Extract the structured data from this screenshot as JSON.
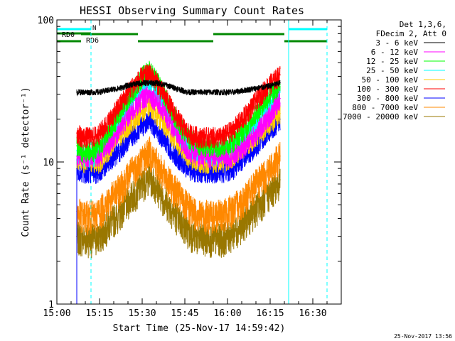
{
  "chart_data": {
    "type": "line",
    "title": "HESSI Observing Summary Count Rates",
    "xlabel": "Start Time (25-Nov-17 14:59:42)",
    "ylabel": "Count Rate (s⁻¹ detector⁻¹)",
    "footer": "25-Nov-2017 13:56",
    "x_range_minutes": [
      0,
      100
    ],
    "x_ticks": [
      {
        "t": 0,
        "label": "15:00"
      },
      {
        "t": 15,
        "label": "15:15"
      },
      {
        "t": 30,
        "label": "15:30"
      },
      {
        "t": 45,
        "label": "15:45"
      },
      {
        "t": 60,
        "label": "16:00"
      },
      {
        "t": 75,
        "label": "16:15"
      },
      {
        "t": 90,
        "label": "16:30"
      }
    ],
    "y_scale": "log",
    "y_range": [
      1,
      100
    ],
    "y_ticks": [
      {
        "v": 1,
        "label": "1"
      },
      {
        "v": 10,
        "label": "10"
      },
      {
        "v": 100,
        "label": "100"
      }
    ],
    "legend_header": [
      "Det 1,3,6,",
      "FDecim 2, Att 0"
    ],
    "series": [
      {
        "name": "3 - 6 keV",
        "color": "#000000",
        "values": [
          31,
          31,
          31,
          31,
          31,
          32,
          33,
          35,
          36,
          36,
          36,
          35,
          33,
          31,
          31,
          31,
          31,
          31,
          32,
          33,
          34,
          36
        ]
      },
      {
        "name": "6 - 12 keV",
        "color": "#ff00ff",
        "values": [
          11,
          11,
          11,
          11,
          11,
          13,
          17,
          22,
          28,
          30,
          27,
          22,
          16,
          12,
          11,
          11,
          11,
          11,
          13,
          16,
          20,
          28
        ]
      },
      {
        "name": "12 - 25 keV",
        "color": "#00ff00",
        "values": [
          13,
          12,
          12,
          12,
          13,
          16,
          22,
          30,
          40,
          45,
          38,
          29,
          20,
          15,
          13,
          13,
          13,
          14,
          17,
          22,
          28,
          35
        ]
      },
      {
        "name": "25 - 50 keV",
        "color": "#00ffff",
        "values": [
          12,
          11,
          11,
          11,
          12,
          14,
          19,
          26,
          34,
          38,
          33,
          25,
          17,
          13,
          12,
          11,
          12,
          13,
          15,
          19,
          24,
          31
        ]
      },
      {
        "name": "50 - 100 keV",
        "color": "#ffcc00",
        "values": [
          10,
          10,
          10,
          10,
          10,
          12,
          15,
          19,
          23,
          25,
          22,
          18,
          14,
          11,
          10,
          10,
          10,
          11,
          13,
          15,
          18,
          22
        ]
      },
      {
        "name": "100 - 300 keV",
        "color": "#ff0000",
        "values": [
          16,
          15,
          15,
          15,
          16,
          19,
          25,
          33,
          40,
          42,
          37,
          29,
          21,
          16,
          15,
          15,
          15,
          17,
          21,
          27,
          34,
          41
        ]
      },
      {
        "name": "300 - 800 keV",
        "color": "#0000ff",
        "values": [
          9,
          8.5,
          8.5,
          8.5,
          8.5,
          10,
          12,
          15,
          18,
          20,
          17,
          14,
          11,
          9,
          8.5,
          8.5,
          8.5,
          9,
          11,
          13,
          16,
          20
        ]
      },
      {
        "name": "800 - 7000 keV",
        "color": "#ff8800",
        "values": [
          4.5,
          4.2,
          4.2,
          4.2,
          4.5,
          5.3,
          6.5,
          8.5,
          10.5,
          12,
          10,
          8,
          6.2,
          4.8,
          4.3,
          4.2,
          4.3,
          4.7,
          5.6,
          7,
          8.5,
          11
        ]
      },
      {
        "name": "7000 - 20000 keV",
        "color": "#997700",
        "values": [
          3.0,
          2.9,
          2.9,
          2.9,
          3.0,
          3.6,
          4.4,
          5.6,
          7,
          8,
          6.8,
          5.4,
          4.2,
          3.3,
          2.9,
          2.9,
          2.9,
          3.2,
          3.8,
          4.7,
          5.8,
          7.5
        ]
      }
    ],
    "series_x": [
      7,
      9,
      11,
      13,
      15,
      18,
      22,
      26,
      30,
      32.5,
      35,
      38,
      42,
      46,
      50,
      54,
      58,
      62,
      66,
      70,
      74,
      78.5
    ],
    "night_periods": [
      {
        "label": "",
        "start": 0,
        "end": 12
      },
      {
        "label": "",
        "start": 81.5,
        "end": 95
      }
    ],
    "saa_bars": [
      {
        "label": "RD0",
        "start": 0,
        "end": 12
      },
      {
        "label": "RD6",
        "start": 0,
        "end": 8.5
      },
      {
        "label": "",
        "start": 8.5,
        "end": 28.5
      },
      {
        "label": "",
        "start": 28.5,
        "end": 55
      },
      {
        "label": "",
        "start": 55,
        "end": 80
      },
      {
        "label": "",
        "start": 80,
        "end": 95
      }
    ],
    "vertical_markers": [
      {
        "t": 12,
        "style": "dashed",
        "label": "N"
      },
      {
        "t": 81.5,
        "style": "solid",
        "label": ""
      },
      {
        "t": 95,
        "style": "dashed",
        "label": ""
      }
    ]
  }
}
